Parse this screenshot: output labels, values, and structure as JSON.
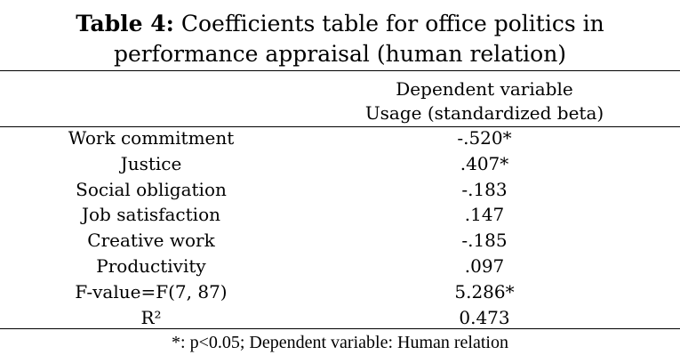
{
  "title": {
    "prefix": "Table 4:",
    "line1": " Coefficients table for office politics in",
    "line2": "performance appraisal (human relation)"
  },
  "header": {
    "line1": "Dependent variable",
    "line2": "Usage (standardized beta)"
  },
  "rows": [
    {
      "label": "Work commitment",
      "value": "-.520*"
    },
    {
      "label": "Justice",
      "value": ".407*"
    },
    {
      "label": "Social obligation",
      "value": "-.183"
    },
    {
      "label": "Job satisfaction",
      "value": ".147"
    },
    {
      "label": "Creative work",
      "value": "-.185"
    },
    {
      "label": "Productivity",
      "value": ".097"
    },
    {
      "label": "F-value=F(7, 87)",
      "value": "5.286*"
    },
    {
      "label": "R²",
      "value": "0.473"
    }
  ],
  "footnote": "*: p<0.05; Dependent variable: Human relation"
}
